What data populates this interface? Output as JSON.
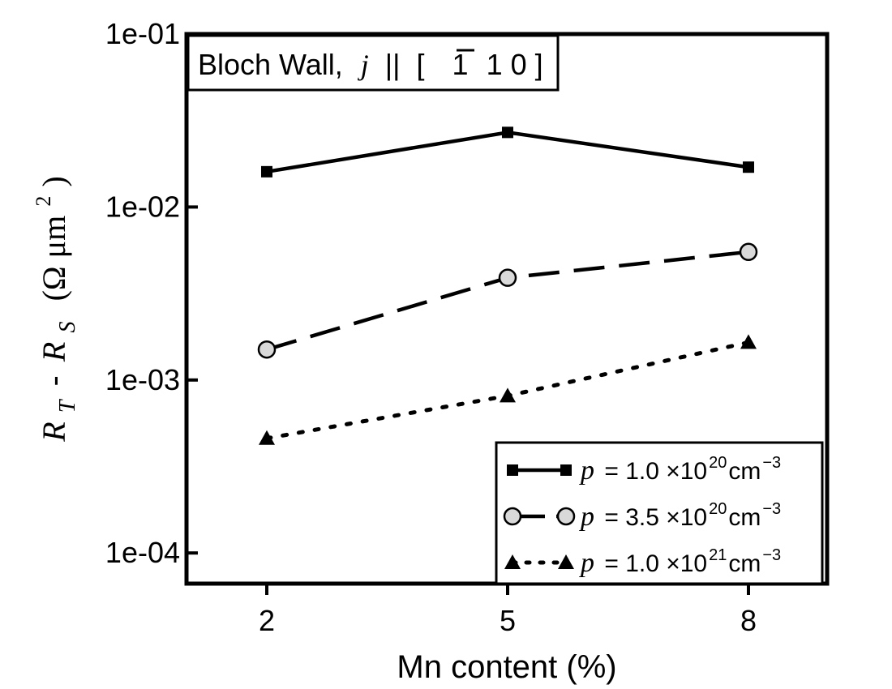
{
  "chart_data": {
    "type": "line",
    "annotation": {
      "prefix": "Bloch Wall,",
      "var": "j",
      "rel": "||",
      "dir_open": "[",
      "bar_digit": "1",
      "dir_rest": "1 0 ]"
    },
    "xlabel": "Mn content (%)",
    "ylabel": {
      "r1": "R",
      "sub1": "T",
      "dash": "-",
      "r2": "R",
      "sub2": "S",
      "unit": "(Ω μm",
      "unit_sup": "2",
      "close": ")"
    },
    "x": [
      2,
      5,
      8
    ],
    "x_tick_labels": [
      "2",
      "5",
      "8"
    ],
    "xlim": [
      1,
      8.98
    ],
    "yscale": "log",
    "ylim": [
      6.65e-05,
      0.1
    ],
    "y_ticks": [
      0.1,
      0.01,
      0.001,
      0.0001
    ],
    "y_tick_labels": [
      "1e-01",
      "1e-02",
      "1e-03",
      "1e-04"
    ],
    "grid": false,
    "legend_position": "bottom-right",
    "series": [
      {
        "name": {
          "var": "p",
          "eq": "= 1.0 ×10",
          "exp": "20",
          "unit": "cm",
          "unit_exp": "−3"
        },
        "values": [
          0.016,
          0.027,
          0.017
        ],
        "line": "solid",
        "marker": "square",
        "marker_fill": "#000000"
      },
      {
        "name": {
          "var": "p",
          "eq": "= 3.5 ×10",
          "exp": "20",
          "unit": "cm",
          "unit_exp": "−3"
        },
        "values": [
          0.0015,
          0.0039,
          0.0055
        ],
        "line": "dashed",
        "marker": "circle",
        "marker_fill": "#d9d9d9"
      },
      {
        "name": {
          "var": "p",
          "eq": "= 1.0 ×10",
          "exp": "21",
          "unit": "cm",
          "unit_exp": "−3"
        },
        "values": [
          0.00046,
          0.00081,
          0.00165
        ],
        "line": "dotted",
        "marker": "triangle",
        "marker_fill": "#000000"
      }
    ]
  }
}
